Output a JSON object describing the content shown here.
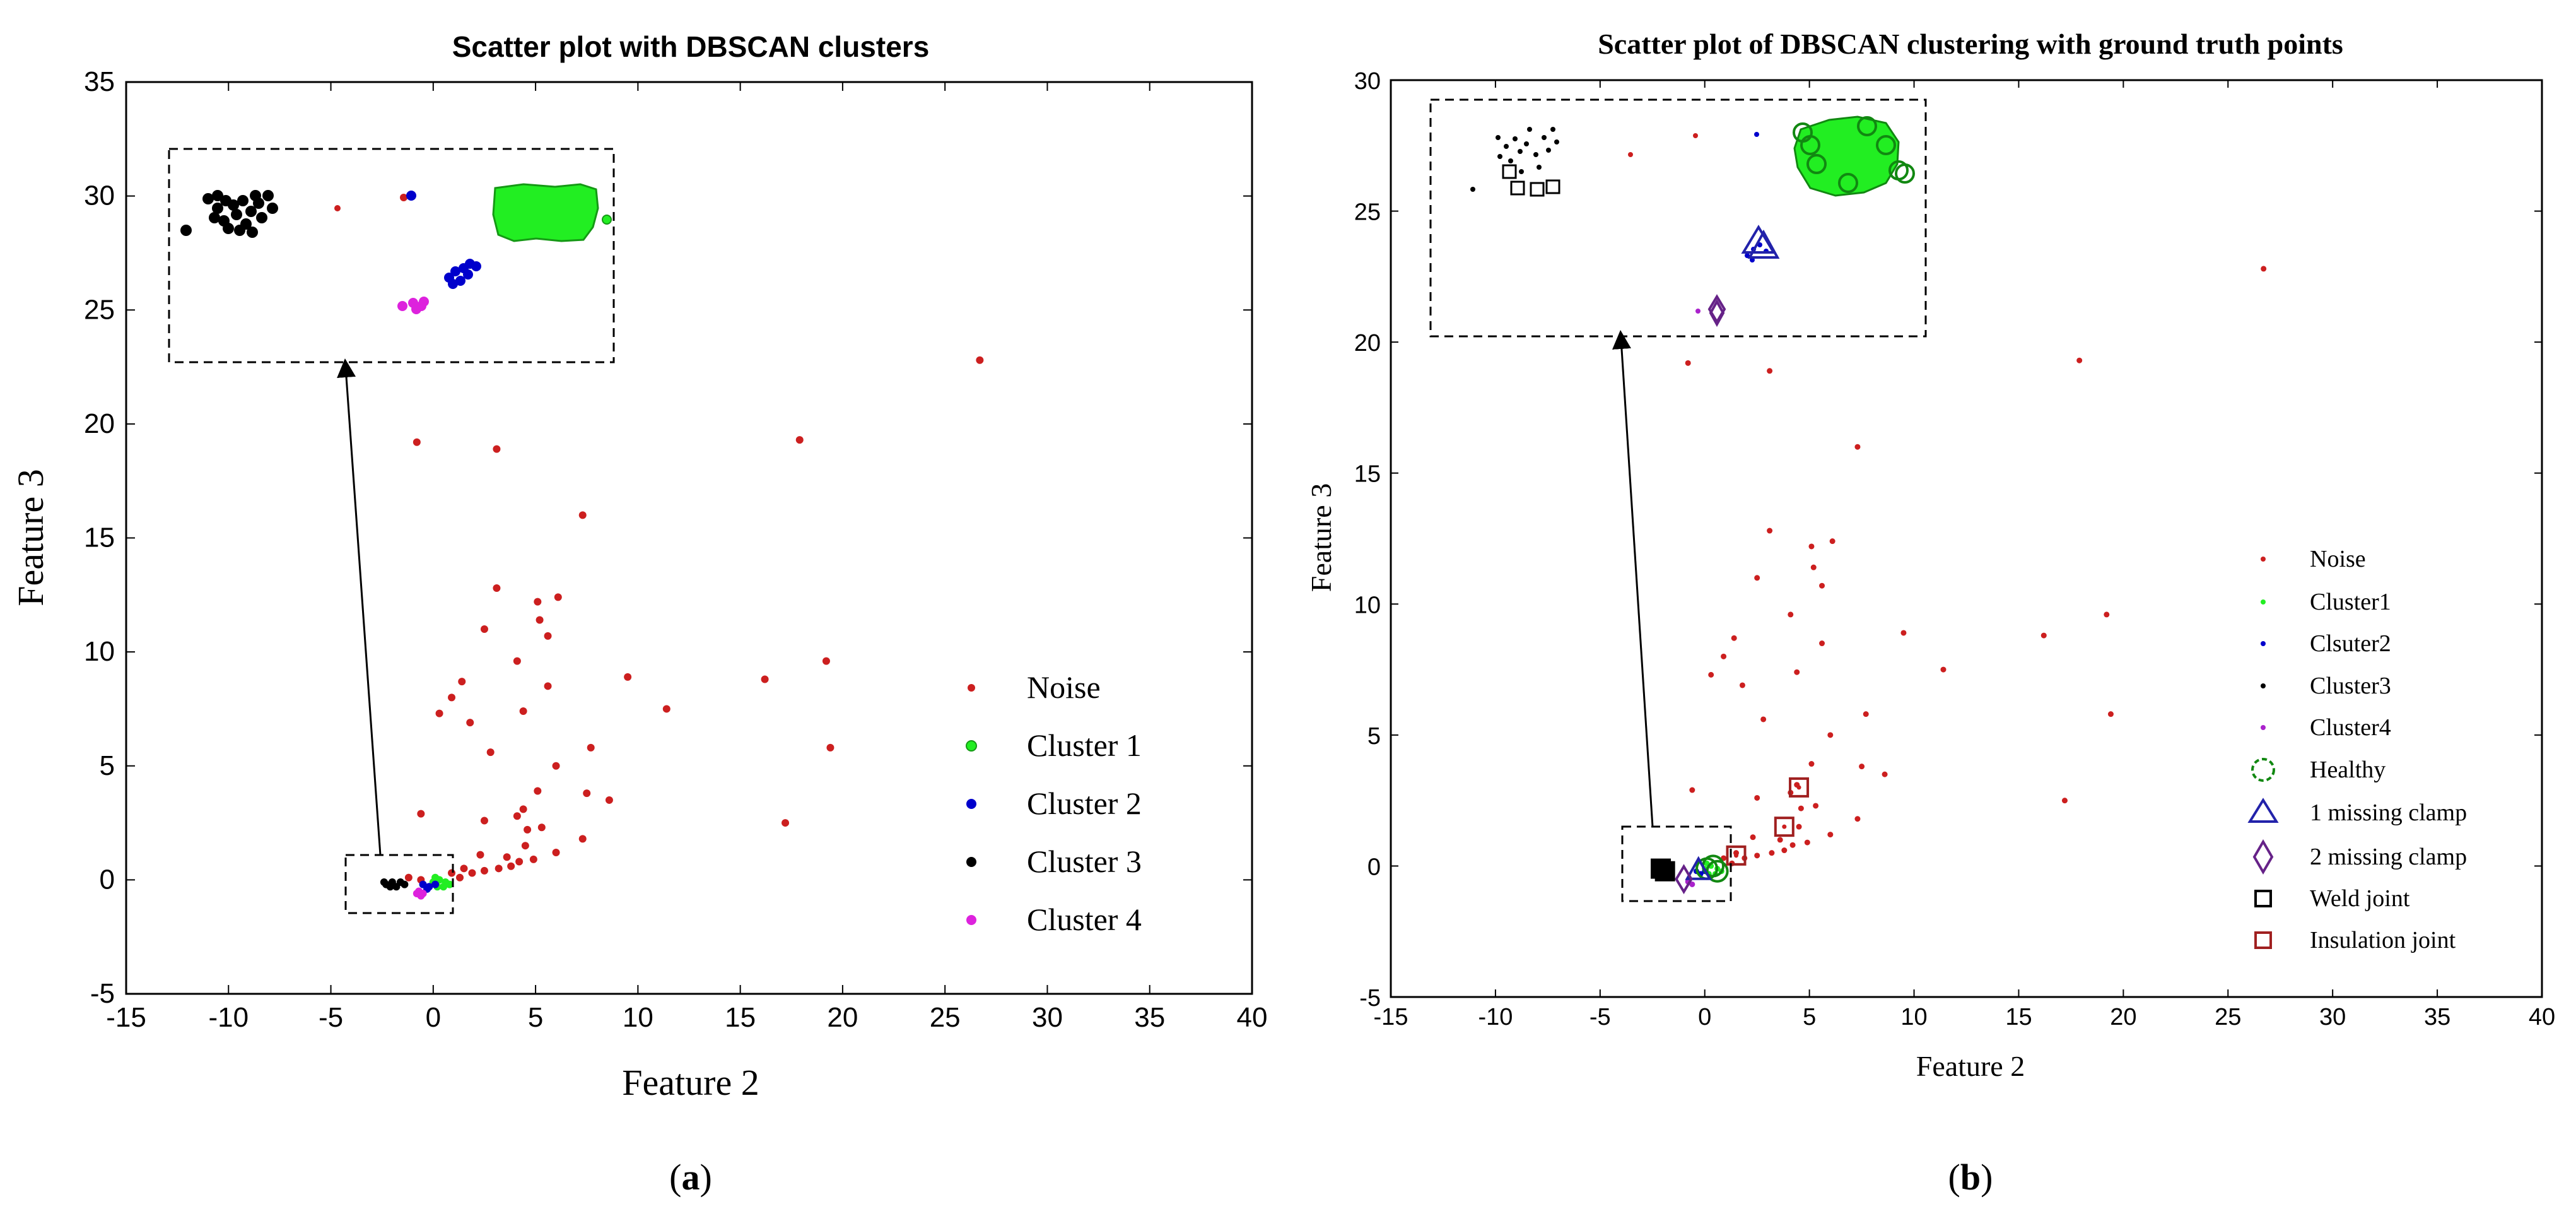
{
  "chart_data": [
    {
      "id": "a",
      "type": "scatter",
      "title": "Scatter plot with DBSCAN clusters",
      "xlabel": "Feature 2",
      "ylabel": "Feature 3",
      "xlim": [
        -15,
        40
      ],
      "ylim": [
        -5,
        35
      ],
      "xticks": [
        -15,
        -10,
        -5,
        0,
        5,
        10,
        15,
        20,
        25,
        30,
        35,
        40
      ],
      "yticks": [
        -5,
        0,
        5,
        10,
        15,
        20,
        25,
        30,
        35
      ],
      "caption_label": "a",
      "legend": [
        "Noise",
        "Cluster 1",
        "Cluster 2",
        "Cluster 3",
        "Cluster 4"
      ],
      "series": [
        {
          "name": "Noise",
          "color": "#cc1f1f",
          "points": [
            [
              26.7,
              22.8
            ],
            [
              -0.8,
              19.2
            ],
            [
              3.1,
              18.9
            ],
            [
              17.9,
              19.3
            ],
            [
              7.3,
              16.0
            ],
            [
              3.1,
              12.8
            ],
            [
              5.1,
              12.2
            ],
            [
              6.1,
              12.4
            ],
            [
              5.2,
              11.4
            ],
            [
              2.5,
              11.0
            ],
            [
              5.6,
              10.7
            ],
            [
              4.1,
              9.6
            ],
            [
              9.5,
              8.9
            ],
            [
              16.2,
              8.8
            ],
            [
              19.2,
              9.6
            ],
            [
              1.4,
              8.7
            ],
            [
              5.6,
              8.5
            ],
            [
              0.9,
              8.0
            ],
            [
              11.4,
              7.5
            ],
            [
              0.3,
              7.3
            ],
            [
              4.4,
              7.4
            ],
            [
              1.8,
              6.9
            ],
            [
              2.8,
              5.6
            ],
            [
              6.0,
              5.0
            ],
            [
              7.7,
              5.8
            ],
            [
              19.4,
              5.8
            ],
            [
              5.1,
              3.9
            ],
            [
              7.5,
              3.8
            ],
            [
              8.6,
              3.5
            ],
            [
              -0.6,
              2.9
            ],
            [
              2.5,
              2.6
            ],
            [
              4.1,
              2.8
            ],
            [
              4.6,
              2.2
            ],
            [
              5.3,
              2.3
            ],
            [
              4.4,
              3.1
            ],
            [
              17.2,
              2.5
            ],
            [
              7.3,
              1.8
            ],
            [
              4.5,
              1.5
            ],
            [
              2.3,
              1.1
            ],
            [
              3.6,
              1.0
            ],
            [
              4.9,
              0.9
            ],
            [
              6.0,
              1.2
            ],
            [
              1.5,
              0.5
            ],
            [
              2.5,
              0.4
            ],
            [
              3.2,
              0.5
            ],
            [
              3.8,
              0.6
            ],
            [
              4.2,
              0.8
            ],
            [
              0.9,
              0.3
            ],
            [
              1.9,
              0.3
            ],
            [
              1.3,
              0.1
            ],
            [
              -0.6,
              0.0
            ],
            [
              -1.2,
              0.1
            ]
          ]
        },
        {
          "name": "Cluster 1",
          "color": "#22ee22",
          "points": [
            [
              0.0,
              -0.1
            ],
            [
              0.3,
              0.0
            ],
            [
              0.6,
              -0.1
            ],
            [
              0.2,
              -0.3
            ],
            [
              0.5,
              -0.3
            ],
            [
              0.8,
              -0.2
            ],
            [
              0.1,
              0.1
            ]
          ]
        },
        {
          "name": "Cluster 2",
          "color": "#0000cc",
          "points": [
            [
              -0.5,
              -0.2
            ],
            [
              -0.2,
              -0.3
            ],
            [
              0.1,
              -0.2
            ],
            [
              -0.3,
              -0.4
            ]
          ]
        },
        {
          "name": "Cluster 3",
          "color": "#000000",
          "points": [
            [
              -2.3,
              -0.2
            ],
            [
              -2.0,
              -0.1
            ],
            [
              -1.8,
              -0.3
            ],
            [
              -1.6,
              -0.1
            ],
            [
              -2.1,
              -0.3
            ],
            [
              -1.4,
              -0.2
            ],
            [
              -2.4,
              -0.1
            ]
          ]
        },
        {
          "name": "Cluster 4",
          "color": "#dd22dd",
          "points": [
            [
              -0.8,
              -0.6
            ],
            [
              -0.6,
              -0.7
            ],
            [
              -0.7,
              -0.5
            ],
            [
              -0.5,
              -0.6
            ]
          ]
        }
      ]
    },
    {
      "id": "b",
      "type": "scatter",
      "title": "Scatter plot of DBSCAN clustering with ground truth points",
      "xlabel": "Feature 2",
      "ylabel": "Feature 3",
      "xlim": [
        -15,
        40
      ],
      "ylim": [
        -5,
        30
      ],
      "xticks": [
        -15,
        -10,
        -5,
        0,
        5,
        10,
        15,
        20,
        25,
        30,
        35,
        40
      ],
      "yticks": [
        -5,
        0,
        5,
        10,
        15,
        20,
        25,
        30
      ],
      "caption_label": "b",
      "legend": [
        "Noise",
        "Cluster1",
        "Clsuter2",
        "Cluster3",
        "Cluster4",
        "Healthy",
        "1 missing clamp",
        "2 missing clamp",
        "Weld joint",
        "Insulation joint"
      ],
      "series": [
        {
          "name": "Noise",
          "color": "#cc1f1f",
          "points": [
            [
              26.7,
              22.8
            ],
            [
              -0.8,
              19.2
            ],
            [
              3.1,
              18.9
            ],
            [
              17.9,
              19.3
            ],
            [
              7.3,
              16.0
            ],
            [
              3.1,
              12.8
            ],
            [
              5.1,
              12.2
            ],
            [
              6.1,
              12.4
            ],
            [
              5.2,
              11.4
            ],
            [
              2.5,
              11.0
            ],
            [
              5.6,
              10.7
            ],
            [
              4.1,
              9.6
            ],
            [
              9.5,
              8.9
            ],
            [
              16.2,
              8.8
            ],
            [
              19.2,
              9.6
            ],
            [
              1.4,
              8.7
            ],
            [
              5.6,
              8.5
            ],
            [
              0.9,
              8.0
            ],
            [
              11.4,
              7.5
            ],
            [
              0.3,
              7.3
            ],
            [
              4.4,
              7.4
            ],
            [
              1.8,
              6.9
            ],
            [
              2.8,
              5.6
            ],
            [
              6.0,
              5.0
            ],
            [
              7.7,
              5.8
            ],
            [
              19.4,
              5.8
            ],
            [
              5.1,
              3.9
            ],
            [
              7.5,
              3.8
            ],
            [
              8.6,
              3.5
            ],
            [
              -0.6,
              2.9
            ],
            [
              2.5,
              2.6
            ],
            [
              4.1,
              2.8
            ],
            [
              4.6,
              2.2
            ],
            [
              5.3,
              2.3
            ],
            [
              4.4,
              3.1
            ],
            [
              17.2,
              2.5
            ],
            [
              7.3,
              1.8
            ],
            [
              4.5,
              1.5
            ],
            [
              2.3,
              1.1
            ],
            [
              3.6,
              1.0
            ],
            [
              4.9,
              0.9
            ],
            [
              6.0,
              1.2
            ],
            [
              1.5,
              0.5
            ],
            [
              2.5,
              0.4
            ],
            [
              3.2,
              0.5
            ],
            [
              3.8,
              0.6
            ],
            [
              4.2,
              0.8
            ],
            [
              0.9,
              0.3
            ],
            [
              1.9,
              0.3
            ],
            [
              1.3,
              0.1
            ]
          ]
        },
        {
          "name": "Cluster1",
          "color": "#22ee22",
          "points": [
            [
              0.0,
              -0.1
            ],
            [
              0.3,
              0.0
            ],
            [
              0.6,
              -0.1
            ],
            [
              0.2,
              -0.3
            ],
            [
              0.5,
              -0.3
            ],
            [
              0.8,
              -0.2
            ],
            [
              0.1,
              0.1
            ]
          ]
        },
        {
          "name": "Clsuter2",
          "color": "#0000cc",
          "points": [
            [
              -0.4,
              -0.2
            ],
            [
              -0.2,
              -0.3
            ],
            [
              0.0,
              -0.2
            ]
          ]
        },
        {
          "name": "Cluster3",
          "color": "#000000",
          "points": [
            [
              -2.2,
              -0.2
            ],
            [
              -1.9,
              -0.1
            ],
            [
              -1.7,
              -0.3
            ],
            [
              -2.0,
              -0.3
            ]
          ]
        },
        {
          "name": "Cluster4",
          "color": "#aa22cc",
          "points": [
            [
              -0.8,
              -0.6
            ],
            [
              -0.6,
              -0.7
            ]
          ]
        },
        {
          "name": "Healthy",
          "color": "#118811",
          "marker": "circle",
          "points": [
            [
              0.1,
              -0.1
            ],
            [
              0.4,
              0.0
            ],
            [
              0.6,
              -0.2
            ]
          ]
        },
        {
          "name": "1 missing clamp",
          "color": "#2222aa",
          "marker": "triangle",
          "points": [
            [
              -0.3,
              -0.2
            ]
          ]
        },
        {
          "name": "2 missing clamp",
          "color": "#662288",
          "marker": "diamond",
          "points": [
            [
              -1.0,
              -0.5
            ]
          ]
        },
        {
          "name": "Weld joint",
          "color": "#000000",
          "marker": "square",
          "points": [
            [
              -2.1,
              -0.1
            ],
            [
              -1.9,
              -0.2
            ]
          ]
        },
        {
          "name": "Insulation joint",
          "color": "#a02020",
          "marker": "square",
          "points": [
            [
              1.5,
              0.4
            ],
            [
              3.8,
              1.5
            ],
            [
              4.5,
              3.0
            ]
          ]
        }
      ]
    }
  ]
}
